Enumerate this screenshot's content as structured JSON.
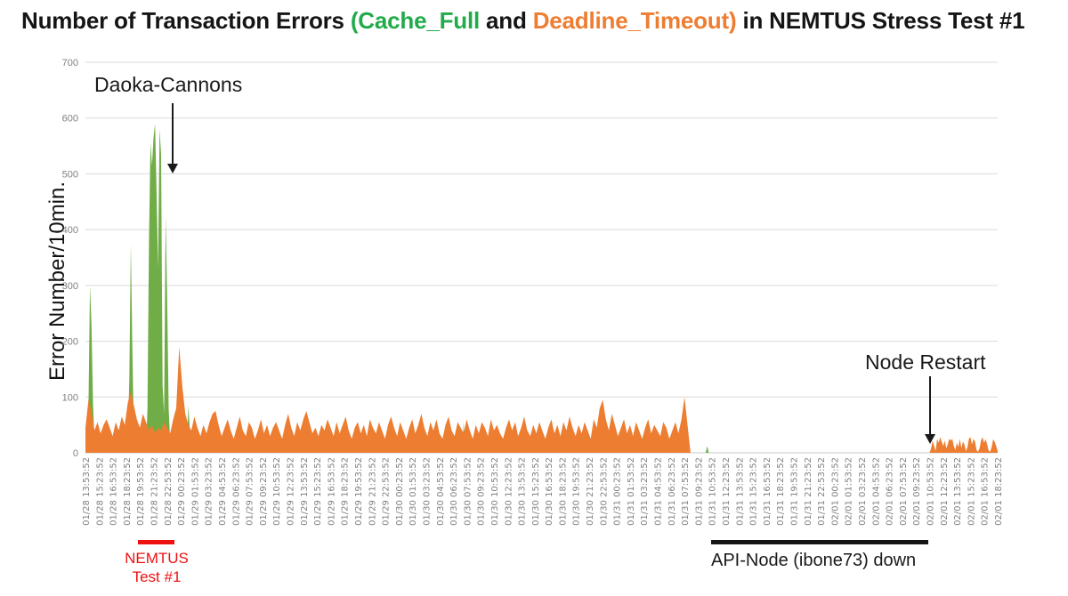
{
  "title": {
    "part1": "Number of Transaction Errors ",
    "green_part": "(Cache_Full",
    "mid": " and ",
    "orange_part": "Deadline_Timeout)",
    "part2": " in NEMTUS Stress Test #1"
  },
  "palette": {
    "green": "#70ad47",
    "orange": "#ed7d31",
    "title_green": "#22ab4b",
    "title_orange": "#ed7d31",
    "red": "#ee1111",
    "black": "#151515",
    "grid": "#d9d9d9",
    "baseline": "#c9c9c9",
    "tick_text": "#808080",
    "annotation": "#1a1a1a"
  },
  "chart_data": {
    "type": "area",
    "title": "Number of Transaction Errors (Cache_Full and Deadline_Timeout) in NEMTUS Stress Test #1",
    "ylabel": "Error Number/10min.",
    "ylim": [
      0,
      700
    ],
    "y_ticks": [
      0,
      100,
      200,
      300,
      400,
      500,
      600,
      700
    ],
    "grid": true,
    "x_unit": "10-minute samples",
    "n_intervals": 603,
    "points_per_tick": 9,
    "x_tick_labels": [
      "01/28 13:53:52",
      "01/28 15:23:52",
      "01/28 16:53:52",
      "01/28 18:23:52",
      "01/28 19:53:52",
      "01/28 21:23:52",
      "01/28 22:53:52",
      "01/29 00:23:52",
      "01/29 01:53:52",
      "01/29 03:23:52",
      "01/29 04:53:52",
      "01/29 06:23:52",
      "01/29 07:53:52",
      "01/29 09:23:52",
      "01/29 10:53:52",
      "01/29 12:23:52",
      "01/29 13:53:52",
      "01/29 15:23:52",
      "01/29 16:53:52",
      "01/29 18:23:52",
      "01/29 19:53:52",
      "01/29 21:23:52",
      "01/29 22:53:52",
      "01/30 00:23:52",
      "01/30 01:53:52",
      "01/30 03:23:52",
      "01/30 04:53:52",
      "01/30 06:23:52",
      "01/30 07:53:52",
      "01/30 09:23:52",
      "01/30 10:53:52",
      "01/30 12:23:52",
      "01/30 13:53:52",
      "01/30 15:23:52",
      "01/30 16:53:52",
      "01/30 18:23:52",
      "01/30 19:53:52",
      "01/30 21:23:52",
      "01/30 22:53:52",
      "01/31 00:23:52",
      "01/31 01:53:52",
      "01/31 03:23:52",
      "01/31 04:53:52",
      "01/31 06:23:52",
      "01/31 07:53:52",
      "01/31 09:23:52",
      "01/31 10:53:52",
      "01/31 12:23:52",
      "01/31 13:53:52",
      "01/31 15:23:52",
      "01/31 16:53:52",
      "01/31 18:23:52",
      "01/31 19:53:52",
      "01/31 21:23:52",
      "01/31 22:53:52",
      "02/01 00:23:52",
      "02/01 01:53:52",
      "02/01 03:23:52",
      "02/01 04:53:52",
      "02/01 06:23:52",
      "02/01 07:53:52",
      "02/01 09:23:52",
      "02/01 10:53:52",
      "02/01 12:23:52",
      "02/01 13:53:52",
      "02/01 15:23:52",
      "02/01 16:53:52",
      "02/01 18:23:52"
    ],
    "series": [
      {
        "name": "Cache_Full",
        "color": "#70ad47",
        "points": [
          [
            0,
            0
          ],
          [
            2,
            80
          ],
          [
            3,
            300
          ],
          [
            4,
            230
          ],
          [
            5,
            90
          ],
          [
            6,
            15
          ],
          [
            7,
            0
          ],
          [
            27,
            0
          ],
          [
            28,
            30
          ],
          [
            29,
            130
          ],
          [
            30,
            375
          ],
          [
            31,
            190
          ],
          [
            32,
            40
          ],
          [
            33,
            0
          ],
          [
            40,
            0
          ],
          [
            41,
            80
          ],
          [
            42,
            380
          ],
          [
            43,
            555
          ],
          [
            44,
            515
          ],
          [
            45,
            565
          ],
          [
            46,
            590
          ],
          [
            47,
            470
          ],
          [
            48,
            330
          ],
          [
            49,
            580
          ],
          [
            50,
            535
          ],
          [
            51,
            120
          ],
          [
            52,
            70
          ],
          [
            53,
            425
          ],
          [
            54,
            280
          ],
          [
            55,
            80
          ],
          [
            56,
            20
          ],
          [
            57,
            0
          ],
          [
            67,
            0
          ],
          [
            68,
            85
          ],
          [
            69,
            40
          ],
          [
            70,
            0
          ],
          [
            126,
            0
          ],
          [
            127,
            48
          ],
          [
            128,
            0
          ],
          [
            179,
            0
          ],
          [
            180,
            52
          ],
          [
            181,
            0
          ],
          [
            249,
            0
          ],
          [
            250,
            55
          ],
          [
            251,
            0
          ],
          [
            299,
            0
          ],
          [
            300,
            45
          ],
          [
            301,
            0
          ],
          [
            349,
            0
          ],
          [
            350,
            50
          ],
          [
            351,
            0
          ],
          [
            410,
            0
          ],
          [
            411,
            12
          ],
          [
            412,
            0
          ]
        ]
      },
      {
        "name": "Deadline_Timeout",
        "color": "#ed7d31",
        "segments": [
          {
            "t0": 0,
            "step": 2,
            "values": [
              45,
              95,
              75,
              40,
              55,
              35,
              50,
              60,
              45,
              30,
              55,
              40,
              65,
              50,
              90,
              110,
              85,
              60,
              45,
              70,
              55,
              40,
              50,
              35,
              45,
              40,
              55,
              45,
              35,
              60,
              80,
              190,
              120,
              70,
              50,
              40,
              65,
              45,
              30,
              50,
              35,
              55,
              70,
              75,
              50,
              30,
              45,
              60,
              40,
              25,
              45,
              65,
              40,
              30,
              55,
              45,
              25,
              40,
              60,
              35,
              50,
              30,
              45,
              55,
              40,
              25,
              50,
              70,
              45,
              30,
              55,
              40,
              60,
              75,
              55,
              35,
              45,
              30,
              50,
              40,
              60,
              45,
              30,
              55,
              35,
              50,
              65,
              40,
              25,
              45,
              55,
              35,
              50,
              30,
              60,
              45,
              35,
              55,
              40,
              25,
              50,
              65,
              45,
              30,
              55,
              40,
              25,
              45,
              60,
              35,
              50,
              70,
              45,
              30,
              55,
              40,
              60,
              35,
              25,
              50,
              65,
              40,
              30,
              55,
              45,
              35,
              60,
              40,
              25,
              50,
              35,
              55,
              45,
              30,
              60,
              40,
              50,
              35,
              25,
              45,
              60,
              40,
              55,
              30,
              45,
              65,
              40,
              30,
              50,
              35,
              55,
              40,
              25,
              45,
              60,
              35,
              50,
              30,
              55,
              40,
              65,
              45,
              30,
              50,
              35,
              55,
              40,
              25,
              60,
              45,
              80,
              95,
              60,
              40,
              70,
              50,
              30,
              45,
              60,
              35,
              50,
              30,
              55,
              40,
              25,
              45,
              60,
              35,
              50,
              40,
              30,
              55,
              45,
              25,
              40,
              55,
              35,
              60,
              100,
              50,
              0
            ]
          },
          {
            "t0": 558,
            "step": 1,
            "values": [
              0,
              8,
              22,
              12,
              3,
              25,
              18,
              28,
              20,
              12,
              22,
              8,
              15,
              25,
              22,
              25,
              12,
              5,
              18,
              10,
              25,
              8,
              20,
              15,
              3,
              10,
              25,
              28,
              15,
              25,
              20,
              5,
              2,
              8,
              22,
              28,
              18,
              24,
              16,
              4,
              2,
              10,
              24,
              20,
              12,
              3
            ]
          }
        ]
      }
    ],
    "annotations": {
      "daoka": {
        "text": "Daoka-Cannons"
      },
      "node_restart": {
        "text": "Node Restart"
      },
      "nemtus": {
        "line1": "NEMTUS",
        "line2": "Test #1"
      },
      "api_node": {
        "text": "API-Node (ibone73) down"
      }
    }
  }
}
